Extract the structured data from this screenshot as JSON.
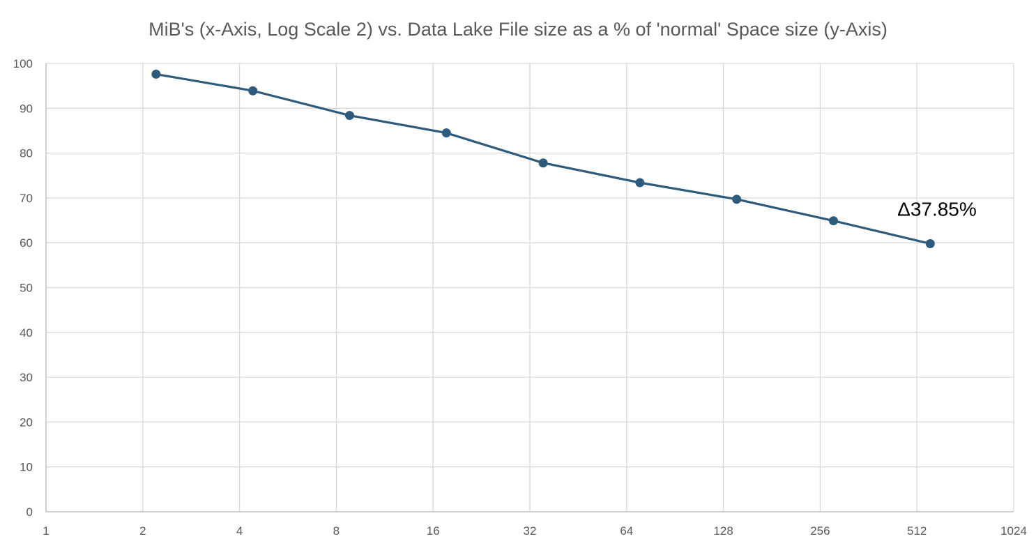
{
  "chart_data": {
    "type": "scatter",
    "title": "MiB's  (x-Axis, Log Scale 2) vs. Data Lake File size as a % of 'normal' Space size (y-Axis)",
    "xlabel": "",
    "ylabel": "",
    "x_scale": "log2",
    "xlim": [
      1,
      1024
    ],
    "ylim": [
      0,
      100
    ],
    "x_ticks": [
      "1",
      "2",
      "4",
      "8",
      "16",
      "32",
      "64",
      "128",
      "256",
      "512",
      "1024"
    ],
    "y_ticks": [
      "0",
      "10",
      "20",
      "30",
      "40",
      "50",
      "60",
      "70",
      "80",
      "90",
      "100"
    ],
    "grid": true,
    "legend": "none",
    "series": [
      {
        "color": "#2e5a7c",
        "points": [
          {
            "x": 2.2,
            "y": 97.6
          },
          {
            "x": 4.4,
            "y": 93.9
          },
          {
            "x": 8.8,
            "y": 88.4
          },
          {
            "x": 17.6,
            "y": 84.5
          },
          {
            "x": 35.2,
            "y": 77.8
          },
          {
            "x": 70.4,
            "y": 73.4
          },
          {
            "x": 140.8,
            "y": 69.7
          },
          {
            "x": 281.6,
            "y": 64.9
          },
          {
            "x": 563.2,
            "y": 59.8
          }
        ]
      }
    ],
    "annotations": [
      {
        "text": "Δ37.85%",
        "x": 445,
        "y": 66
      }
    ]
  }
}
